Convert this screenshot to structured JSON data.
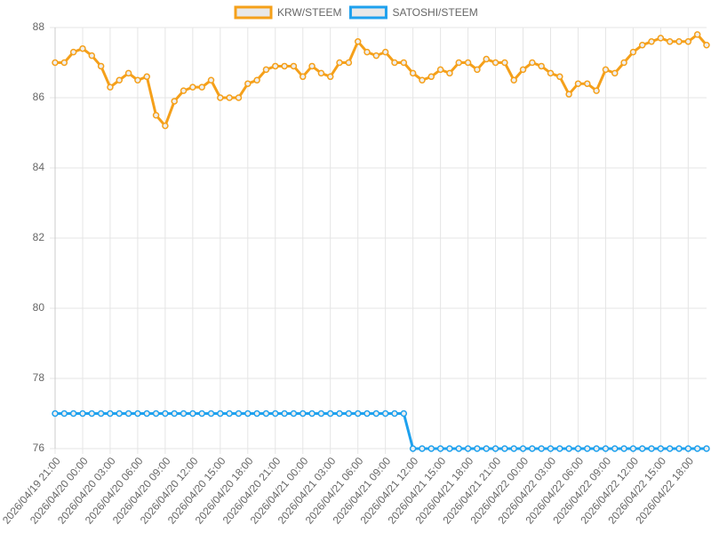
{
  "chart_data": {
    "type": "line",
    "categories": [
      "2026/04/19 21:00",
      null,
      null,
      "2026/04/20 00:00",
      null,
      null,
      "2026/04/20 03:00",
      null,
      null,
      "2026/04/20 06:00",
      null,
      null,
      "2026/04/20 09:00",
      null,
      null,
      "2026/04/20 12:00",
      null,
      null,
      "2026/04/20 15:00",
      null,
      null,
      "2026/04/20 18:00",
      null,
      null,
      "2026/04/20 21:00",
      null,
      null,
      "2026/04/21 00:00",
      null,
      null,
      "2026/04/21 03:00",
      null,
      null,
      "2026/04/21 06:00",
      null,
      null,
      "2026/04/21 09:00",
      null,
      null,
      "2026/04/21 12:00",
      null,
      null,
      "2026/04/21 15:00",
      null,
      null,
      "2026/04/21 18:00",
      null,
      null,
      "2026/04/21 21:00",
      null,
      null,
      "2026/04/22 00:00",
      null,
      null,
      "2026/04/22 03:00",
      null,
      null,
      "2026/04/22 06:00",
      null,
      null,
      "2026/04/22 09:00",
      null,
      null,
      "2026/04/22 12:00",
      null,
      null,
      "2026/04/22 15:00",
      null,
      null,
      "2026/04/22 18:00",
      null,
      null
    ],
    "series": [
      {
        "name": "KRW/STEEM",
        "color": "#f5a01a",
        "values": [
          87.0,
          87.0,
          87.3,
          87.4,
          87.2,
          86.9,
          86.3,
          86.5,
          86.7,
          86.5,
          86.6,
          85.5,
          85.2,
          85.9,
          86.2,
          86.3,
          86.3,
          86.5,
          86.0,
          86.0,
          86.0,
          86.4,
          86.5,
          86.8,
          86.9,
          86.9,
          86.9,
          86.6,
          86.9,
          86.7,
          86.6,
          87.0,
          87.0,
          87.6,
          87.3,
          87.2,
          87.3,
          87.0,
          87.0,
          86.7,
          86.5,
          86.6,
          86.8,
          86.7,
          87.0,
          87.0,
          86.8,
          87.1,
          87.0,
          87.0,
          86.5,
          86.8,
          87.0,
          86.9,
          86.7,
          86.6,
          86.1,
          86.4,
          86.4,
          86.2,
          86.8,
          86.7,
          87.0,
          87.3,
          87.5,
          87.6,
          87.7,
          87.6,
          87.6,
          87.6,
          87.8,
          87.5
        ]
      },
      {
        "name": "SATOSHI/STEEM",
        "color": "#1ea1ee",
        "values": [
          77,
          77,
          77,
          77,
          77,
          77,
          77,
          77,
          77,
          77,
          77,
          77,
          77,
          77,
          77,
          77,
          77,
          77,
          77,
          77,
          77,
          77,
          77,
          77,
          77,
          77,
          77,
          77,
          77,
          77,
          77,
          77,
          77,
          77,
          77,
          77,
          77,
          77,
          77,
          76,
          76,
          76,
          76,
          76,
          76,
          76,
          76,
          76,
          76,
          76,
          76,
          76,
          76,
          76,
          76,
          76,
          76,
          76,
          76,
          76,
          76,
          76,
          76,
          76,
          76,
          76,
          76,
          76,
          76,
          76,
          76,
          76
        ]
      }
    ],
    "ylim": [
      76,
      88
    ],
    "yticks": [
      76,
      78,
      80,
      82,
      84,
      86,
      88
    ],
    "grid": true,
    "legend": "top"
  }
}
